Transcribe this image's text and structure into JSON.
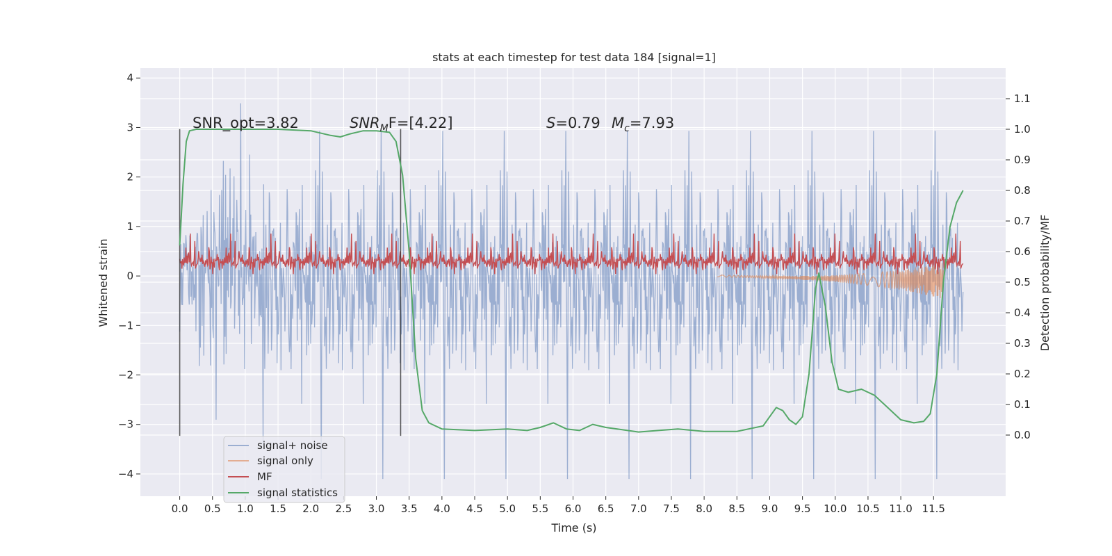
{
  "chart_data": {
    "type": "line",
    "title": "stats at each timestep for test data 184 [signal=1]",
    "xlabel": "Time (s)",
    "ylabel": "Whitened strain",
    "ylabel_right": "Detection probability/MF",
    "xlim": [
      -0.6,
      12.6
    ],
    "ylim": [
      -4.45,
      4.2
    ],
    "ylim_right": [
      -0.2,
      1.2
    ],
    "x_ticks": [
      "0.0",
      "0.5",
      "1.0",
      "1.5",
      "2.0",
      "2.5",
      "3.0",
      "3.5",
      "4.0",
      "4.5",
      "5.0",
      "5.5",
      "6.0",
      "6.5",
      "7.0",
      "7.5",
      "8.0",
      "8.5",
      "9.0",
      "9.5",
      "10.0",
      "10.5",
      "11.0",
      "11.5"
    ],
    "y_ticks": [
      -4,
      -3,
      -2,
      -1,
      0,
      1,
      2,
      3,
      4
    ],
    "y_tick_labels": [
      "−4",
      "−3",
      "−2",
      "−1",
      "0",
      "1",
      "2",
      "3",
      "4"
    ],
    "y_ticks_right": [
      "0.0",
      "0.1",
      "0.2",
      "0.3",
      "0.4",
      "0.5",
      "0.6",
      "0.7",
      "0.8",
      "0.9",
      "1.0",
      "1.1"
    ],
    "grid": true,
    "legend_position": "lower-left",
    "annotations": {
      "snr_opt": "SNR_opt=3.82",
      "snr_mf_italic": "SNR",
      "snr_mf_sub": "M",
      "snr_mf_rest": "F=[4.22]",
      "s_italic": "S",
      "s_rest": "=0.79",
      "mc_italic": "M",
      "mc_sub": "c",
      "mc_rest": "=7.93"
    },
    "vertical_lines": [
      0.0,
      3.37
    ],
    "series": [
      {
        "name": "signal+ noise",
        "color": "#4c72b0",
        "axis": "left",
        "style": "noise",
        "x_range": [
          0.0,
          11.95
        ],
        "amplitude": 1.1
      },
      {
        "name": "signal only",
        "color": "#dd8452",
        "axis": "left",
        "style": "chirp",
        "x_range": [
          8.2,
          11.65
        ]
      },
      {
        "name": "MF",
        "color": "#c44e52",
        "axis": "left",
        "style": "mf",
        "x_range": [
          0.0,
          11.95
        ],
        "baseline": 0.3
      },
      {
        "name": "signal statistics",
        "color": "#55a868",
        "axis": "right",
        "style": "line",
        "x": [
          0.0,
          0.05,
          0.1,
          0.15,
          0.25,
          0.5,
          1.0,
          1.5,
          2.0,
          2.3,
          2.45,
          2.6,
          2.8,
          3.0,
          3.2,
          3.3,
          3.4,
          3.5,
          3.6,
          3.7,
          3.8,
          4.0,
          4.5,
          5.0,
          5.3,
          5.5,
          5.7,
          5.9,
          6.1,
          6.3,
          6.5,
          7.0,
          7.3,
          7.6,
          8.0,
          8.5,
          8.9,
          9.0,
          9.1,
          9.2,
          9.3,
          9.4,
          9.5,
          9.6,
          9.7,
          9.75,
          9.85,
          9.95,
          10.05,
          10.2,
          10.4,
          10.6,
          10.8,
          11.0,
          11.2,
          11.35,
          11.45,
          11.55,
          11.65,
          11.75,
          11.85,
          11.95
        ],
        "y": [
          0.62,
          0.82,
          0.96,
          0.995,
          1.0,
          1.0,
          1.0,
          1.0,
          0.995,
          0.98,
          0.975,
          0.985,
          0.995,
          0.995,
          0.99,
          0.96,
          0.85,
          0.6,
          0.25,
          0.08,
          0.04,
          0.02,
          0.015,
          0.02,
          0.015,
          0.025,
          0.04,
          0.02,
          0.015,
          0.035,
          0.025,
          0.01,
          0.015,
          0.02,
          0.012,
          0.012,
          0.03,
          0.06,
          0.09,
          0.08,
          0.05,
          0.035,
          0.06,
          0.2,
          0.48,
          0.53,
          0.42,
          0.24,
          0.15,
          0.14,
          0.15,
          0.13,
          0.09,
          0.05,
          0.04,
          0.045,
          0.07,
          0.2,
          0.5,
          0.68,
          0.76,
          0.8
        ]
      }
    ]
  }
}
